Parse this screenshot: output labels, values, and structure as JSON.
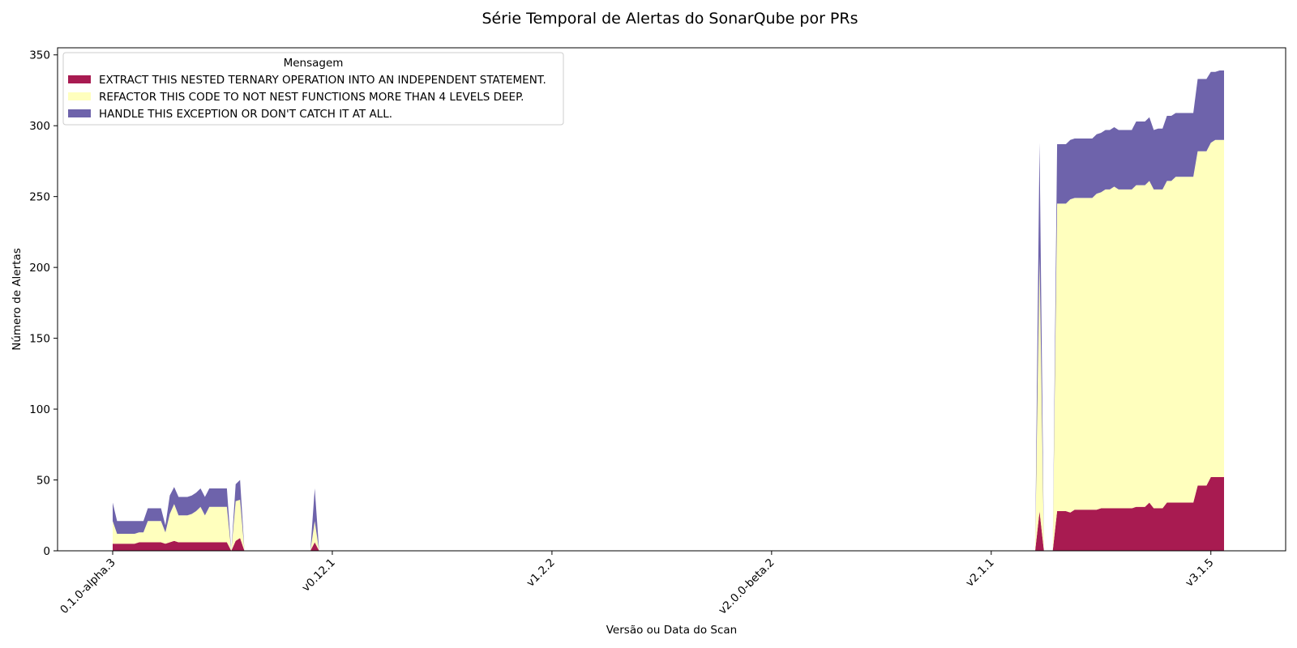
{
  "chart_data": {
    "type": "area",
    "stacked": true,
    "title": "Série Temporal de Alertas do SonarQube por PRs",
    "xlabel": "Versão ou Data do Scan",
    "ylabel": "Número de Alertas",
    "ylim": [
      0,
      355
    ],
    "yticks": [
      0,
      50,
      100,
      150,
      200,
      250,
      300,
      350
    ],
    "xticks": [
      {
        "index": 0,
        "label": "0.1.0-alpha.3"
      },
      {
        "index": 50,
        "label": "v0.12.1"
      },
      {
        "index": 100,
        "label": "v1.2.2"
      },
      {
        "index": 150,
        "label": "v2.0.0-beta.2"
      },
      {
        "index": 200,
        "label": "v2.1.1"
      },
      {
        "index": 250,
        "label": "v3.1.5"
      }
    ],
    "legend": {
      "title": "Mensagem",
      "position": "upper-left"
    },
    "grid": false,
    "x_count": 264,
    "series": [
      {
        "name": "EXTRACT THIS NESTED TERNARY OPERATION INTO AN INDEPENDENT STATEMENT.",
        "color": "#a81b51",
        "points": [
          [
            0,
            5
          ],
          [
            1,
            5
          ],
          [
            2,
            5
          ],
          [
            3,
            5
          ],
          [
            4,
            5
          ],
          [
            5,
            5
          ],
          [
            6,
            6
          ],
          [
            7,
            6
          ],
          [
            8,
            6
          ],
          [
            9,
            6
          ],
          [
            10,
            6
          ],
          [
            11,
            6
          ],
          [
            12,
            5
          ],
          [
            13,
            6
          ],
          [
            14,
            7
          ],
          [
            15,
            6
          ],
          [
            16,
            6
          ],
          [
            17,
            6
          ],
          [
            18,
            6
          ],
          [
            19,
            6
          ],
          [
            20,
            6
          ],
          [
            21,
            6
          ],
          [
            22,
            6
          ],
          [
            23,
            6
          ],
          [
            24,
            6
          ],
          [
            25,
            6
          ],
          [
            26,
            6
          ],
          [
            27,
            0
          ],
          [
            28,
            7
          ],
          [
            29,
            9
          ],
          [
            30,
            0
          ],
          [
            45,
            0
          ],
          [
            46,
            6
          ],
          [
            47,
            0
          ],
          [
            210,
            0
          ],
          [
            211,
            28
          ],
          [
            212,
            0
          ],
          [
            214,
            0
          ],
          [
            215,
            28
          ],
          [
            216,
            28
          ],
          [
            217,
            28
          ],
          [
            218,
            27
          ],
          [
            219,
            29
          ],
          [
            220,
            29
          ],
          [
            221,
            29
          ],
          [
            222,
            29
          ],
          [
            223,
            29
          ],
          [
            224,
            29
          ],
          [
            225,
            30
          ],
          [
            226,
            30
          ],
          [
            227,
            30
          ],
          [
            228,
            30
          ],
          [
            229,
            30
          ],
          [
            230,
            30
          ],
          [
            231,
            30
          ],
          [
            232,
            30
          ],
          [
            233,
            31
          ],
          [
            234,
            31
          ],
          [
            235,
            31
          ],
          [
            236,
            34
          ],
          [
            237,
            30
          ],
          [
            238,
            30
          ],
          [
            239,
            30
          ],
          [
            240,
            34
          ],
          [
            241,
            34
          ],
          [
            242,
            34
          ],
          [
            243,
            34
          ],
          [
            244,
            34
          ],
          [
            245,
            34
          ],
          [
            246,
            34
          ],
          [
            247,
            46
          ],
          [
            248,
            46
          ],
          [
            249,
            46
          ],
          [
            250,
            52
          ],
          [
            251,
            52
          ],
          [
            252,
            52
          ],
          [
            253,
            52
          ]
        ]
      },
      {
        "name": "REFACTOR THIS CODE TO NOT NEST FUNCTIONS MORE THAN 4 LEVELS DEEP.",
        "color": "#ffffbe",
        "points": [
          [
            0,
            16
          ],
          [
            1,
            7
          ],
          [
            2,
            7
          ],
          [
            3,
            7
          ],
          [
            4,
            7
          ],
          [
            5,
            7
          ],
          [
            6,
            7
          ],
          [
            7,
            7
          ],
          [
            8,
            15
          ],
          [
            9,
            15
          ],
          [
            10,
            15
          ],
          [
            11,
            15
          ],
          [
            12,
            8
          ],
          [
            13,
            20
          ],
          [
            14,
            26
          ],
          [
            15,
            19
          ],
          [
            16,
            19
          ],
          [
            17,
            19
          ],
          [
            18,
            20
          ],
          [
            19,
            22
          ],
          [
            20,
            25
          ],
          [
            21,
            19
          ],
          [
            22,
            25
          ],
          [
            23,
            25
          ],
          [
            24,
            25
          ],
          [
            25,
            25
          ],
          [
            26,
            25
          ],
          [
            27,
            0
          ],
          [
            28,
            28
          ],
          [
            29,
            27
          ],
          [
            30,
            0
          ],
          [
            45,
            0
          ],
          [
            46,
            15
          ],
          [
            47,
            0
          ],
          [
            210,
            0
          ],
          [
            211,
            180
          ],
          [
            212,
            0
          ],
          [
            214,
            0
          ],
          [
            215,
            217
          ],
          [
            216,
            217
          ],
          [
            217,
            217
          ],
          [
            218,
            221
          ],
          [
            219,
            220
          ],
          [
            220,
            220
          ],
          [
            221,
            220
          ],
          [
            222,
            220
          ],
          [
            223,
            220
          ],
          [
            224,
            223
          ],
          [
            225,
            223
          ],
          [
            226,
            225
          ],
          [
            227,
            225
          ],
          [
            228,
            227
          ],
          [
            229,
            225
          ],
          [
            230,
            225
          ],
          [
            231,
            225
          ],
          [
            232,
            225
          ],
          [
            233,
            227
          ],
          [
            234,
            227
          ],
          [
            235,
            227
          ],
          [
            236,
            227
          ],
          [
            237,
            225
          ],
          [
            238,
            225
          ],
          [
            239,
            225
          ],
          [
            240,
            227
          ],
          [
            241,
            227
          ],
          [
            242,
            230
          ],
          [
            243,
            230
          ],
          [
            244,
            230
          ],
          [
            245,
            230
          ],
          [
            246,
            230
          ],
          [
            247,
            236
          ],
          [
            248,
            236
          ],
          [
            249,
            236
          ],
          [
            250,
            236
          ],
          [
            251,
            238
          ],
          [
            252,
            238
          ],
          [
            253,
            238
          ]
        ]
      },
      {
        "name": "HANDLE THIS EXCEPTION OR DON'T CATCH IT AT ALL.",
        "color": "#6e63ab",
        "points": [
          [
            0,
            13
          ],
          [
            1,
            9
          ],
          [
            2,
            9
          ],
          [
            3,
            9
          ],
          [
            4,
            9
          ],
          [
            5,
            9
          ],
          [
            6,
            8
          ],
          [
            7,
            8
          ],
          [
            8,
            9
          ],
          [
            9,
            9
          ],
          [
            10,
            9
          ],
          [
            11,
            9
          ],
          [
            12,
            5
          ],
          [
            13,
            13
          ],
          [
            14,
            12
          ],
          [
            15,
            13
          ],
          [
            16,
            13
          ],
          [
            17,
            13
          ],
          [
            18,
            13
          ],
          [
            19,
            13
          ],
          [
            20,
            13
          ],
          [
            21,
            13
          ],
          [
            22,
            13
          ],
          [
            23,
            13
          ],
          [
            24,
            13
          ],
          [
            25,
            13
          ],
          [
            26,
            13
          ],
          [
            27,
            0
          ],
          [
            28,
            12
          ],
          [
            29,
            14
          ],
          [
            30,
            0
          ],
          [
            45,
            0
          ],
          [
            46,
            23
          ],
          [
            47,
            0
          ],
          [
            210,
            0
          ],
          [
            211,
            80
          ],
          [
            212,
            0
          ],
          [
            214,
            0
          ],
          [
            215,
            42
          ],
          [
            216,
            42
          ],
          [
            217,
            42
          ],
          [
            218,
            42
          ],
          [
            219,
            42
          ],
          [
            220,
            42
          ],
          [
            221,
            42
          ],
          [
            222,
            42
          ],
          [
            223,
            42
          ],
          [
            224,
            42
          ],
          [
            225,
            42
          ],
          [
            226,
            42
          ],
          [
            227,
            42
          ],
          [
            228,
            42
          ],
          [
            229,
            42
          ],
          [
            230,
            42
          ],
          [
            231,
            42
          ],
          [
            232,
            42
          ],
          [
            233,
            45
          ],
          [
            234,
            45
          ],
          [
            235,
            45
          ],
          [
            236,
            45
          ],
          [
            237,
            42
          ],
          [
            238,
            43
          ],
          [
            239,
            43
          ],
          [
            240,
            46
          ],
          [
            241,
            46
          ],
          [
            242,
            45
          ],
          [
            243,
            45
          ],
          [
            244,
            45
          ],
          [
            245,
            45
          ],
          [
            246,
            45
          ],
          [
            247,
            51
          ],
          [
            248,
            51
          ],
          [
            249,
            51
          ],
          [
            250,
            50
          ],
          [
            251,
            48
          ],
          [
            252,
            49
          ],
          [
            253,
            49
          ]
        ]
      }
    ]
  }
}
